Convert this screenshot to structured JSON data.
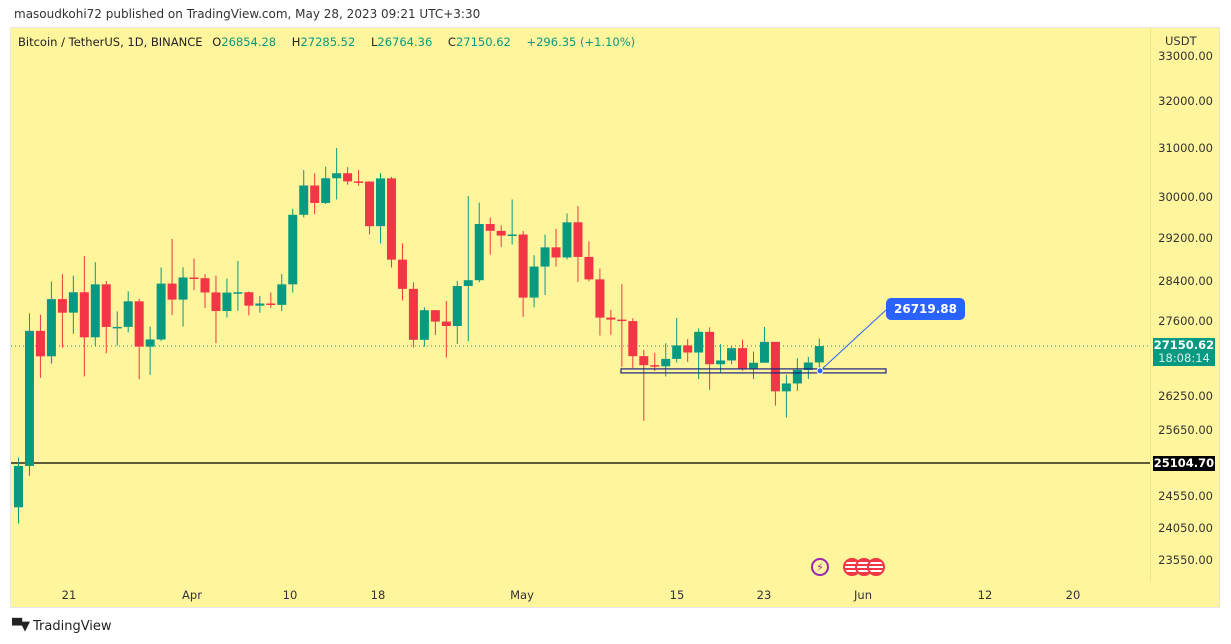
{
  "publish_line": "masoudkohi72 published on TradingView.com, May 28, 2023 09:21 UTC+3:30",
  "legend": {
    "symbol": "Bitcoin / TetherUS, 1D, BINANCE",
    "open_label": "O",
    "open": "26854.28",
    "high_label": "H",
    "high": "27285.52",
    "low_label": "L",
    "low": "26764.36",
    "close_label": "C",
    "close": "27150.62",
    "change": "+296.35 (+1.10%)"
  },
  "price_axis": {
    "unit": "USDT",
    "ticks": [
      "33000.00",
      "32000.00",
      "31000.00",
      "30000.00",
      "29200.00",
      "28400.00",
      "27600.00",
      "26250.00",
      "25650.00",
      "24550.00",
      "24050.00",
      "23550.00"
    ],
    "last_price": "27150.62",
    "countdown": "18:08:14",
    "hline_price": "25104.70"
  },
  "time_axis": [
    "21",
    "Apr",
    "10",
    "18",
    "May",
    "15",
    "23",
    "Jun",
    "12",
    "20"
  ],
  "annotation": {
    "label": "26719.88"
  },
  "footer": {
    "brand": "TradingView"
  },
  "colors": {
    "up": "#089981",
    "down": "#f23645",
    "background": "#fff59d",
    "note": "#2962ff"
  },
  "chart_data": {
    "type": "candlestick",
    "start_date": "2023-03-16",
    "interval": "1D",
    "hline": 25104.7,
    "box_price": 26719.88,
    "ohlc": [
      [
        24373,
        25196,
        24123,
        25055
      ],
      [
        25055,
        27756,
        24890,
        27423
      ],
      [
        27423,
        27725,
        26578,
        26965
      ],
      [
        26965,
        28390,
        26833,
        28038
      ],
      [
        28038,
        28528,
        27124,
        27767
      ],
      [
        27767,
        28500,
        27370,
        28175
      ],
      [
        28175,
        28868,
        26601,
        27307
      ],
      [
        27307,
        28750,
        27155,
        28333
      ],
      [
        28333,
        28400,
        27018,
        27493
      ],
      [
        27493,
        27792,
        27158,
        27494
      ],
      [
        27494,
        28194,
        27395,
        27994
      ],
      [
        27994,
        28044,
        26552,
        27139
      ],
      [
        27139,
        27500,
        26631,
        27268
      ],
      [
        27268,
        28650,
        27240,
        28348
      ],
      [
        28348,
        29184,
        27720,
        28028
      ],
      [
        28028,
        28656,
        27500,
        28465
      ],
      [
        28465,
        28819,
        28220,
        28452
      ],
      [
        28452,
        28530,
        27862,
        28171
      ],
      [
        28171,
        28500,
        27200,
        27800
      ],
      [
        27800,
        28444,
        27670,
        28168
      ],
      [
        28168,
        28775,
        27805,
        28175
      ],
      [
        28175,
        28190,
        27711,
        27907
      ],
      [
        27907,
        28100,
        27766,
        27950
      ],
      [
        27950,
        28171,
        27865,
        27923
      ],
      [
        27923,
        28530,
        27800,
        28333
      ],
      [
        28333,
        29770,
        28170,
        29653
      ],
      [
        29653,
        30550,
        29600,
        30235
      ],
      [
        30235,
        30485,
        29666,
        29884
      ],
      [
        29884,
        30620,
        29863,
        30383
      ],
      [
        30383,
        31000,
        29950,
        30485
      ],
      [
        30485,
        30610,
        30251,
        30318
      ],
      [
        30318,
        30550,
        30231,
        30315
      ],
      [
        30315,
        30320,
        29270,
        29431
      ],
      [
        29431,
        30485,
        29100,
        30380
      ],
      [
        30380,
        30411,
        28650,
        28797
      ],
      [
        28797,
        29100,
        28010,
        28243
      ],
      [
        28243,
        28374,
        27125,
        27262
      ],
      [
        27262,
        27876,
        27140,
        27816
      ],
      [
        27816,
        27820,
        27350,
        27590
      ],
      [
        27590,
        28000,
        26942,
        27510
      ],
      [
        27510,
        28400,
        27188,
        28300
      ],
      [
        28300,
        30020,
        27235,
        28415
      ],
      [
        28415,
        29890,
        28374,
        29473
      ],
      [
        29473,
        29599,
        28891,
        29340
      ],
      [
        29340,
        29449,
        29033,
        29248
      ],
      [
        29248,
        29952,
        29079,
        29268
      ],
      [
        29268,
        29338,
        27680,
        28068
      ],
      [
        28068,
        28879,
        27872,
        28669
      ],
      [
        28669,
        29266,
        28120,
        29026
      ],
      [
        29026,
        29379,
        28670,
        28838
      ],
      [
        28838,
        29677,
        28800,
        29506
      ],
      [
        29506,
        29820,
        28380,
        28848
      ],
      [
        28848,
        29138,
        28395,
        28430
      ],
      [
        28430,
        28631,
        27338,
        27668
      ],
      [
        27668,
        27821,
        27353,
        27628
      ],
      [
        27628,
        28336,
        26777,
        27598
      ],
      [
        27598,
        27655,
        26752,
        26968
      ],
      [
        26968,
        27080,
        25811,
        26805
      ],
      [
        26805,
        27030,
        26700,
        26785
      ],
      [
        26785,
        27200,
        26601,
        26918
      ],
      [
        26918,
        27662,
        26854,
        27162
      ],
      [
        27162,
        27276,
        26866,
        27033
      ],
      [
        27033,
        27465,
        26555,
        27405
      ],
      [
        27405,
        27485,
        26363,
        26822
      ],
      [
        26822,
        27183,
        26665,
        26890
      ],
      [
        26890,
        27155,
        26822,
        27112
      ],
      [
        27112,
        27265,
        26706,
        26747
      ],
      [
        26747,
        27050,
        26555,
        26849
      ],
      [
        26849,
        27495,
        26849,
        27225
      ],
      [
        27225,
        27225,
        26080,
        26334
      ],
      [
        26334,
        26631,
        25871,
        26476
      ],
      [
        26476,
        26931,
        26343,
        26720
      ],
      [
        26720,
        26955,
        26557,
        26854
      ],
      [
        26854,
        27285,
        26764,
        27150
      ]
    ]
  }
}
